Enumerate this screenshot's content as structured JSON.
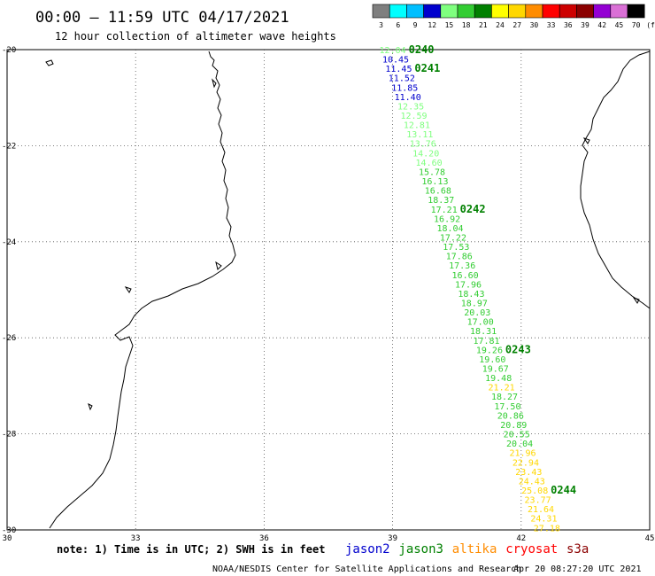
{
  "header": {
    "title": "00:00 – 11:59 UTC 04/17/2021",
    "subtitle": "12 hour collection of altimeter wave heights"
  },
  "legend": {
    "unit": "(ft)",
    "bins": [
      {
        "label": "3",
        "color": "#7f7f7f"
      },
      {
        "label": "6",
        "color": "#00ffff"
      },
      {
        "label": "9",
        "color": "#00bfff"
      },
      {
        "label": "12",
        "color": "#0000cd"
      },
      {
        "label": "15",
        "color": "#7fff7f"
      },
      {
        "label": "18",
        "color": "#32cd32"
      },
      {
        "label": "21",
        "color": "#008000"
      },
      {
        "label": "24",
        "color": "#ffff00"
      },
      {
        "label": "27",
        "color": "#ffd700"
      },
      {
        "label": "30",
        "color": "#ff8c00"
      },
      {
        "label": "33",
        "color": "#ff0000"
      },
      {
        "label": "36",
        "color": "#cd0000"
      },
      {
        "label": "39",
        "color": "#8b0000"
      },
      {
        "label": "42",
        "color": "#9400d3"
      },
      {
        "label": "45",
        "color": "#da70d6"
      },
      {
        "label": "70",
        "color": "#000000"
      }
    ]
  },
  "axes": {
    "lon_range": [
      30,
      45
    ],
    "lat_range": [
      -30,
      -20
    ],
    "lon_ticks": [
      "30",
      "33",
      "36",
      "39",
      "42",
      "45"
    ],
    "lat_ticks": [
      "-20",
      "-22",
      "-24",
      "-26",
      "-28",
      "-30"
    ]
  },
  "track": {
    "start": {
      "lon": 39.0,
      "lat": -20.0
    },
    "end": {
      "lon": 42.6,
      "lat": -29.95
    },
    "color_jason3_light": "#7fff7f",
    "color_jason3_mid": "#32cd32",
    "color_jason3_dark": "#008000",
    "color_blue": "#0000cd",
    "color_yellow": "#ffd700",
    "swh": [
      {
        "v": "12.04",
        "c": "#7fff7f"
      },
      {
        "v": "10.45",
        "c": "#0000cd"
      },
      {
        "v": "11.45",
        "c": "#0000cd"
      },
      {
        "v": "11.52",
        "c": "#0000cd"
      },
      {
        "v": "11.85",
        "c": "#0000cd"
      },
      {
        "v": "11.40",
        "c": "#0000cd"
      },
      {
        "v": "12.35",
        "c": "#7fff7f"
      },
      {
        "v": "12.59",
        "c": "#7fff7f"
      },
      {
        "v": "12.81",
        "c": "#7fff7f"
      },
      {
        "v": "13.11",
        "c": "#7fff7f"
      },
      {
        "v": "13.76",
        "c": "#7fff7f"
      },
      {
        "v": "14.20",
        "c": "#7fff7f"
      },
      {
        "v": "14.60",
        "c": "#7fff7f"
      },
      {
        "v": "15.78",
        "c": "#32cd32"
      },
      {
        "v": "16.13",
        "c": "#32cd32"
      },
      {
        "v": "16.68",
        "c": "#32cd32"
      },
      {
        "v": "18.37",
        "c": "#32cd32"
      },
      {
        "v": "17.21",
        "c": "#32cd32"
      },
      {
        "v": "16.92",
        "c": "#32cd32"
      },
      {
        "v": "18.04",
        "c": "#32cd32"
      },
      {
        "v": "17.22",
        "c": "#32cd32"
      },
      {
        "v": "17.53",
        "c": "#32cd32"
      },
      {
        "v": "17.86",
        "c": "#32cd32"
      },
      {
        "v": "17.36",
        "c": "#32cd32"
      },
      {
        "v": "16.60",
        "c": "#32cd32"
      },
      {
        "v": "17.96",
        "c": "#32cd32"
      },
      {
        "v": "18.43",
        "c": "#32cd32"
      },
      {
        "v": "18.97",
        "c": "#32cd32"
      },
      {
        "v": "20.03",
        "c": "#32cd32"
      },
      {
        "v": "17.00",
        "c": "#32cd32"
      },
      {
        "v": "18.31",
        "c": "#32cd32"
      },
      {
        "v": "17.81",
        "c": "#32cd32"
      },
      {
        "v": "19.26",
        "c": "#32cd32"
      },
      {
        "v": "19.60",
        "c": "#32cd32"
      },
      {
        "v": "19.67",
        "c": "#32cd32"
      },
      {
        "v": "19.48",
        "c": "#32cd32"
      },
      {
        "v": "21.21",
        "c": "#ffd700"
      },
      {
        "v": "18.27",
        "c": "#32cd32"
      },
      {
        "v": "17.50",
        "c": "#32cd32"
      },
      {
        "v": "20.86",
        "c": "#32cd32"
      },
      {
        "v": "20.89",
        "c": "#32cd32"
      },
      {
        "v": "20.55",
        "c": "#32cd32"
      },
      {
        "v": "20.04",
        "c": "#32cd32"
      },
      {
        "v": "21.96",
        "c": "#ffd700"
      },
      {
        "v": "22.94",
        "c": "#ffd700"
      },
      {
        "v": "23.43",
        "c": "#ffd700"
      },
      {
        "v": "24.43",
        "c": "#ffd700"
      },
      {
        "v": "25.08",
        "c": "#ffd700"
      },
      {
        "v": "23.77",
        "c": "#ffd700"
      },
      {
        "v": "21.64",
        "c": "#ffd700"
      },
      {
        "v": "24.31",
        "c": "#ffd700"
      },
      {
        "v": "27.18",
        "c": "#ffd700"
      }
    ],
    "pass_labels": [
      {
        "text": "0240",
        "index": 0
      },
      {
        "text": "0241",
        "index": 2
      },
      {
        "text": "0242",
        "index": 17
      },
      {
        "text": "0243",
        "index": 32
      },
      {
        "text": "0244",
        "index": 47
      }
    ]
  },
  "footer": {
    "note": "note: 1) Time is in UTC; 2) SWH is in feet",
    "satellites": [
      {
        "name": "jason2",
        "color": "#0000cd"
      },
      {
        "name": "jason3",
        "color": "#008000"
      },
      {
        "name": "altika",
        "color": "#ff8c00"
      },
      {
        "name": "cryosat",
        "color": "#ff0000"
      },
      {
        "name": "s3a",
        "color": "#8b0000"
      }
    ],
    "credit": "NOAA/NESDIS Center for Satellite Applications and Research",
    "timestamp": "Apr 20 08:27:20 UTC 2021"
  }
}
